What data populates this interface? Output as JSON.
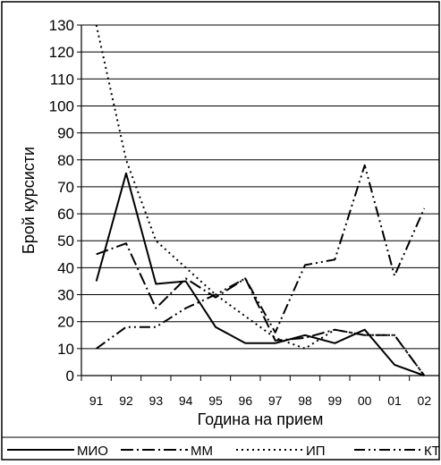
{
  "chart_data": {
    "type": "line",
    "xlabel": "Година на прием",
    "ylabel": "Брой курсисти",
    "ylim": [
      0,
      130
    ],
    "yticks": [
      0,
      10,
      20,
      30,
      40,
      50,
      60,
      70,
      80,
      90,
      100,
      110,
      120,
      130
    ],
    "categories": [
      "91",
      "92",
      "93",
      "94",
      "95",
      "96",
      "97",
      "98",
      "99",
      "00",
      "01",
      "02"
    ],
    "grid": "horizontal",
    "legend_position": "bottom",
    "series": [
      {
        "name": "МИО",
        "style": "solid",
        "values": [
          35,
          75,
          34,
          35,
          18,
          12,
          12,
          15,
          12,
          17,
          4,
          0
        ],
        "color": "#000000"
      },
      {
        "name": "ММ",
        "style": "dash-dot",
        "values": [
          45,
          49,
          25,
          36,
          29,
          36,
          13,
          14,
          17,
          15,
          15,
          0
        ],
        "color": "#000000"
      },
      {
        "name": "ИП",
        "style": "dotted",
        "values": [
          130,
          80,
          50,
          40,
          30,
          22,
          14,
          10,
          17,
          15,
          15,
          0
        ],
        "color": "#000000"
      },
      {
        "name": "КТ",
        "style": "dash-dot-dot",
        "values": [
          10,
          18,
          18,
          25,
          30,
          36,
          16,
          41,
          43,
          78,
          37,
          62
        ],
        "color": "#000000"
      }
    ]
  }
}
